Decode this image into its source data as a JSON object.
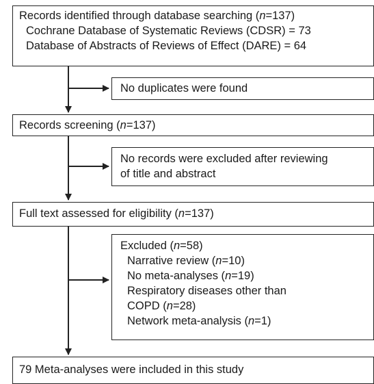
{
  "identified": {
    "title_prefix": "Records identified through database searching (",
    "title_n_label": "n",
    "title_suffix": "=137)",
    "sources": [
      "Cochrane Database of Systematic Reviews (CDSR) = 73",
      "Database of Abstracts of Reviews of Effect (DARE) = 64"
    ]
  },
  "duplicates": {
    "text": "No duplicates were found"
  },
  "screening": {
    "prefix": "Records screening (",
    "n_label": "n",
    "suffix": "=137)"
  },
  "screening_excluded": {
    "line1": "No records were excluded after reviewing",
    "line2": "of title and abstract"
  },
  "fulltext": {
    "prefix": "Full text assessed for eligibility (",
    "n_label": "n",
    "suffix": "=137)"
  },
  "excluded": {
    "title_prefix": "Excluded (",
    "title_n_label": "n",
    "title_suffix": "=58)",
    "reasons": [
      {
        "prefix": "Narrative review (",
        "n_label": "n",
        "suffix": "=10)"
      },
      {
        "prefix": "No meta-analyses (",
        "n_label": "n",
        "suffix": "=19)"
      },
      {
        "prefix": "Respiratory diseases other than",
        "n_label": "",
        "suffix": ""
      },
      {
        "prefix": "COPD (",
        "n_label": "n",
        "suffix": "=28)"
      },
      {
        "prefix": "Network meta-analysis (",
        "n_label": "n",
        "suffix": "=1)"
      }
    ]
  },
  "included": {
    "text": "79 Meta-analyses were included in this study"
  },
  "colors": {
    "line": "#222222",
    "text": "#1a1a1a",
    "background": "#ffffff"
  }
}
